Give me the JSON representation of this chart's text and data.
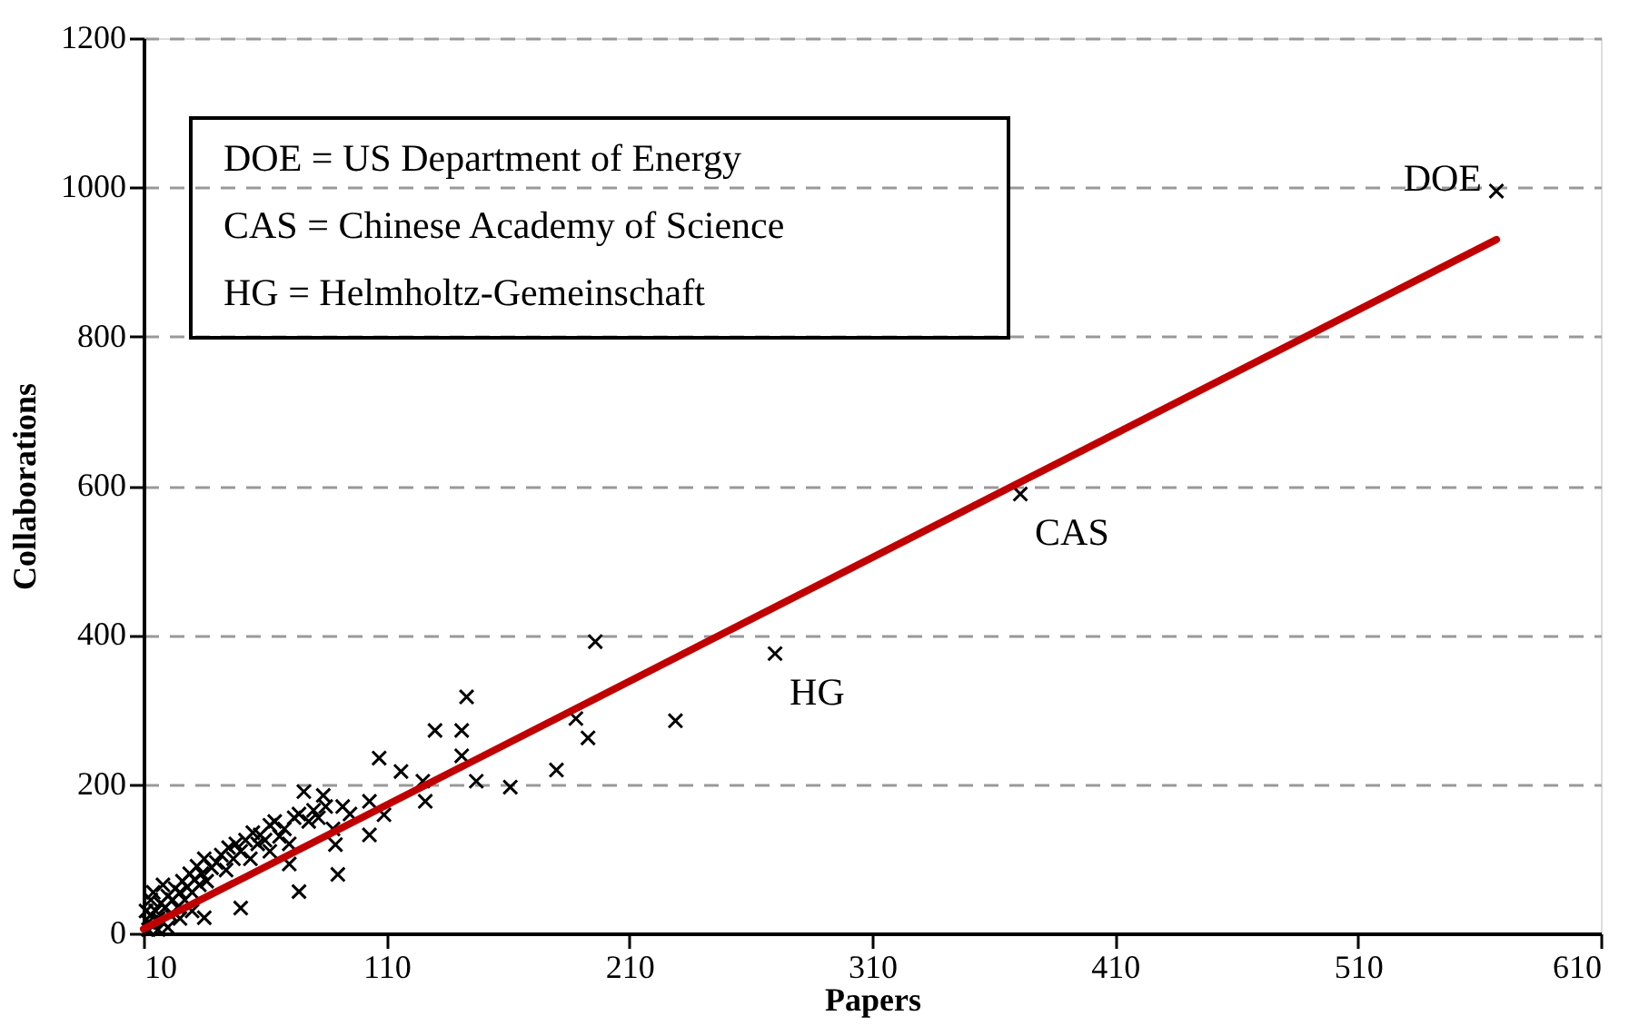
{
  "chart_data": {
    "type": "scatter",
    "xlabel": "Papers",
    "ylabel": "Collaborations",
    "xlim": [
      10,
      610
    ],
    "xticks": [
      10,
      110,
      210,
      310,
      410,
      510,
      610
    ],
    "ylim": [
      0,
      1200
    ],
    "yticks": [
      0,
      200,
      400,
      600,
      800,
      1000,
      1200
    ],
    "grid": "y",
    "marker": "cross",
    "series": [
      {
        "color": "#000000",
        "x": [
          567,
          371,
          270,
          229,
          196,
          193,
          188,
          180,
          161,
          147,
          143,
          141,
          141,
          130,
          126,
          125,
          116,
          109,
          107,
          103,
          103,
          90,
          89,
          88,
          84,
          76,
          74,
          70,
          62,
          58,
          50,
          35,
          12,
          12,
          13,
          14,
          15,
          16,
          17,
          18,
          19,
          20,
          21,
          22,
          23,
          24,
          25,
          26,
          27,
          28,
          29,
          30,
          31,
          32,
          33,
          34,
          35,
          36,
          38,
          40,
          42,
          44,
          45,
          47,
          48,
          50,
          52,
          54,
          55,
          57,
          60,
          62,
          64,
          66,
          68,
          70,
          72,
          74,
          78,
          80,
          82,
          85,
          92,
          95,
          11,
          13,
          14,
          18,
          16,
          20,
          25,
          30
        ],
        "values": [
          995,
          589,
          375,
          285,
          391,
          262,
          288,
          219,
          196,
          204,
          317,
          272,
          238,
          272,
          177,
          204,
          217,
          159,
          235,
          177,
          132,
          79,
          119,
          140,
          185,
          190,
          56,
          93,
          145,
          132,
          34,
          21,
          5,
          15,
          25,
          10,
          30,
          20,
          40,
          15,
          35,
          50,
          25,
          45,
          60,
          35,
          55,
          70,
          45,
          62,
          80,
          55,
          72,
          90,
          65,
          80,
          100,
          70,
          88,
          95,
          105,
          85,
          115,
          100,
          120,
          110,
          125,
          100,
          135,
          120,
          125,
          110,
          150,
          130,
          140,
          120,
          155,
          160,
          150,
          165,
          155,
          170,
          170,
          160,
          30,
          45,
          55,
          65,
          5,
          8,
          20,
          30
        ]
      },
      {
        "type": "line",
        "color": "#c00000",
        "line_style": "solid",
        "marker": "none",
        "x": [
          10,
          567
        ],
        "values": [
          6,
          930
        ]
      }
    ],
    "annotations": [
      "DOE = US Department of Energy",
      "CAS = Chinese Academy of Science",
      "HG = Helmholtz-Gemeinschaft",
      {
        "text": "DOE",
        "x": 567,
        "y": 995
      },
      {
        "text": "CAS",
        "x": 371,
        "y": 589
      },
      {
        "text": "HG",
        "x": 270,
        "y": 375
      }
    ]
  }
}
